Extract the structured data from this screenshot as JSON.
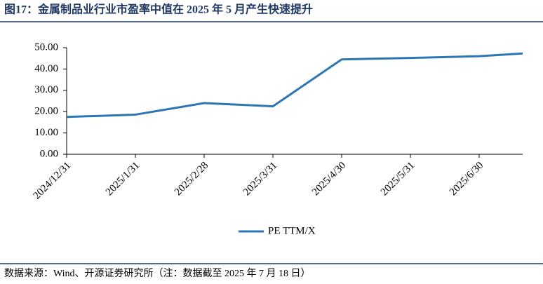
{
  "header": {
    "title": "图17：金属制品业行业市盈率中值在 2025 年 5 月产生快速提升"
  },
  "chart_data": {
    "type": "line",
    "categories": [
      "2024/12/31",
      "2025/1/31",
      "2025/2/28",
      "2025/3/31",
      "2025/4/30",
      "2025/5/31",
      "2025/6/30",
      null
    ],
    "series": [
      {
        "name": "PE TTM/X",
        "color": "#2e75b6",
        "values": [
          17.5,
          18.6,
          24.0,
          22.5,
          44.5,
          45.2,
          46.0,
          47.3
        ]
      }
    ],
    "ylim": [
      0,
      50
    ],
    "yticks": [
      {
        "value": 0,
        "label": "0.00"
      },
      {
        "value": 10,
        "label": "10.00"
      },
      {
        "value": 20,
        "label": "20.00"
      },
      {
        "value": 30,
        "label": "30.00"
      },
      {
        "value": 40,
        "label": "40.00"
      },
      {
        "value": 50,
        "label": "50.00"
      }
    ],
    "legend": "bottom"
  },
  "footer": {
    "source": "数据来源：Wind、开源证券研究所（注：数据截至 2025 年 7 月 18 日）"
  }
}
